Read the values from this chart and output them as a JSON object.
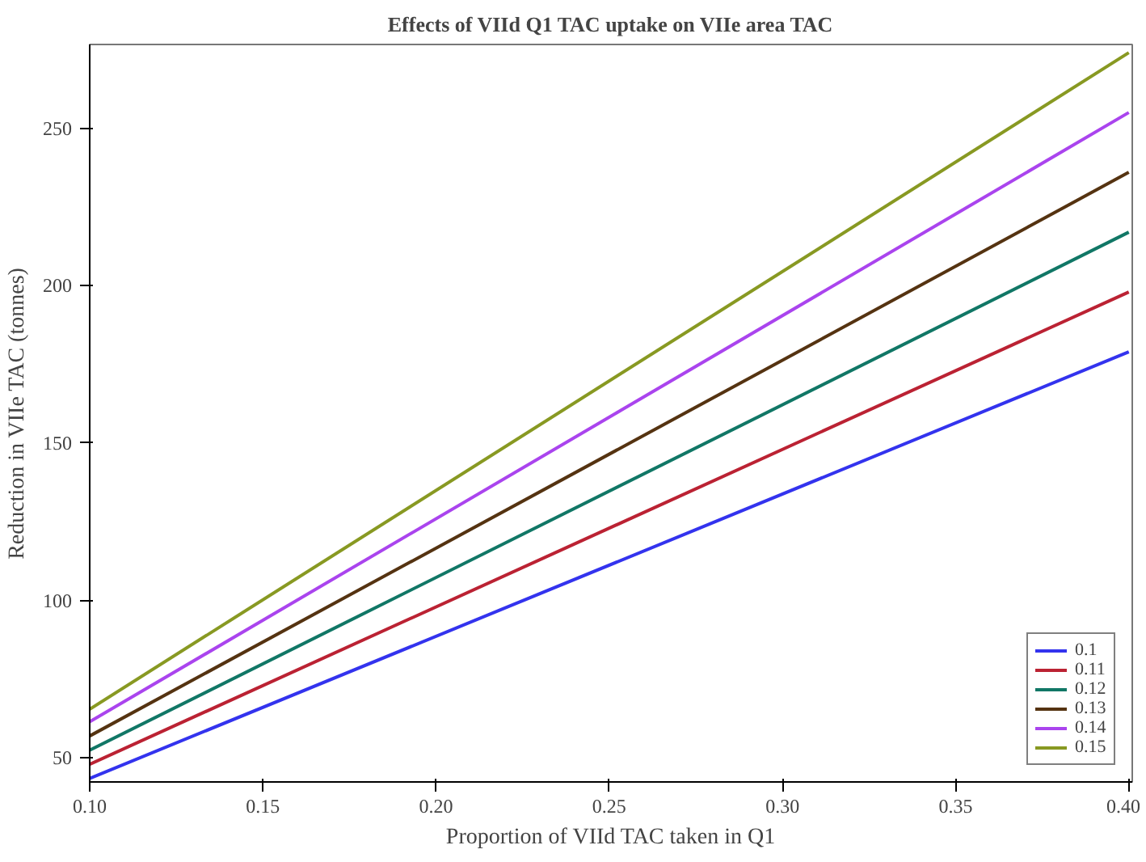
{
  "chart_data": {
    "type": "line",
    "title": "Effects of VIId Q1 TAC uptake on VIIe area TAC",
    "xlabel": "Proportion of VIId TAC taken in Q1",
    "ylabel": "Reduction in VIIe TAC (tonnes)",
    "x": [
      0.1,
      0.4
    ],
    "series": [
      {
        "name": "0.1",
        "color": "#3333ee",
        "values": [
          43.5,
          179
        ]
      },
      {
        "name": "0.11",
        "color": "#bb2233",
        "values": [
          48,
          198
        ]
      },
      {
        "name": "0.12",
        "color": "#117766",
        "values": [
          52.5,
          217
        ]
      },
      {
        "name": "0.13",
        "color": "#553311",
        "values": [
          57,
          236
        ]
      },
      {
        "name": "0.14",
        "color": "#aa44ee",
        "values": [
          61.5,
          255
        ]
      },
      {
        "name": "0.15",
        "color": "#889922",
        "values": [
          65.5,
          274
        ]
      }
    ],
    "xlim": [
      0.1,
      0.401
    ],
    "ylim": [
      42.4,
      276.6
    ],
    "xticks": [
      {
        "value": 0.1,
        "label": "0.10"
      },
      {
        "value": 0.15,
        "label": "0.15"
      },
      {
        "value": 0.2,
        "label": "0.20"
      },
      {
        "value": 0.25,
        "label": "0.25"
      },
      {
        "value": 0.3,
        "label": "0.30"
      },
      {
        "value": 0.35,
        "label": "0.35"
      },
      {
        "value": 0.4,
        "label": "0.40"
      }
    ],
    "yticks": [
      50,
      100,
      150,
      200,
      250
    ],
    "grid": false,
    "legend": "bottom right",
    "marker": "none",
    "line_style": "solid"
  }
}
